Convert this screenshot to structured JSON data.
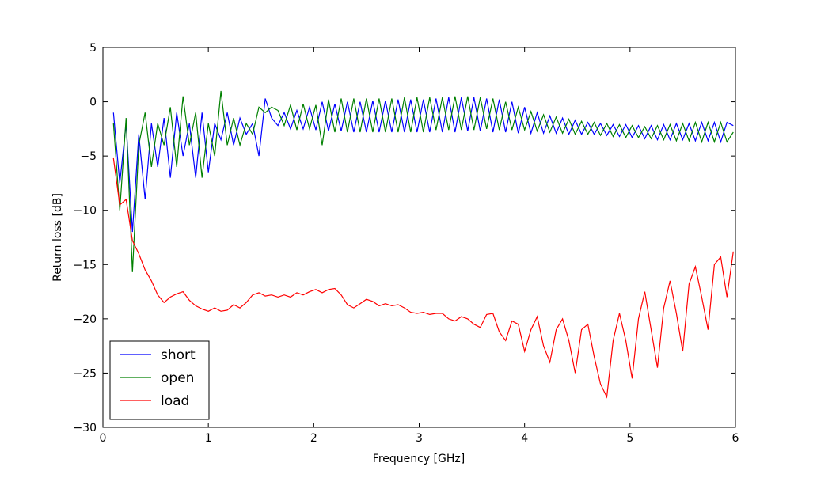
{
  "chart_data": {
    "type": "line",
    "xlabel": "Frequency [GHz]",
    "ylabel": "Return loss [dB]",
    "xlim": [
      0,
      6
    ],
    "ylim": [
      -30,
      5
    ],
    "xticks": [
      0,
      1,
      2,
      3,
      4,
      5,
      6
    ],
    "yticks": [
      {
        "value": -30,
        "label": "−30"
      },
      {
        "value": -25,
        "label": "−25"
      },
      {
        "value": -20,
        "label": "−20"
      },
      {
        "value": -15,
        "label": "−15"
      },
      {
        "value": -10,
        "label": "−10"
      },
      {
        "value": -5,
        "label": "−5"
      },
      0,
      5
    ],
    "legend": "lower left",
    "x": [
      0.1,
      0.16,
      0.22,
      0.28,
      0.34,
      0.4,
      0.46,
      0.52,
      0.58,
      0.64,
      0.7,
      0.76,
      0.82,
      0.88,
      0.94,
      1.0,
      1.06,
      1.12,
      1.18,
      1.24,
      1.3,
      1.36,
      1.42,
      1.48,
      1.54,
      1.6,
      1.66,
      1.72,
      1.78,
      1.84,
      1.9,
      1.96,
      2.02,
      2.08,
      2.14,
      2.2,
      2.26,
      2.32,
      2.38,
      2.44,
      2.5,
      2.56,
      2.62,
      2.68,
      2.74,
      2.8,
      2.86,
      2.92,
      2.98,
      3.04,
      3.1,
      3.16,
      3.22,
      3.28,
      3.34,
      3.4,
      3.46,
      3.52,
      3.58,
      3.64,
      3.7,
      3.76,
      3.82,
      3.88,
      3.94,
      4.0,
      4.06,
      4.12,
      4.18,
      4.24,
      4.3,
      4.36,
      4.42,
      4.48,
      4.54,
      4.6,
      4.66,
      4.72,
      4.78,
      4.84,
      4.9,
      4.96,
      5.02,
      5.08,
      5.14,
      5.2,
      5.26,
      5.32,
      5.38,
      5.44,
      5.5,
      5.56,
      5.62,
      5.68,
      5.74,
      5.8,
      5.86,
      5.92,
      5.98
    ],
    "series": [
      {
        "name": "short",
        "color": "#0000ff",
        "values": [
          -1,
          -7.5,
          -2,
          -12,
          -3,
          -9,
          -2,
          -6,
          -1.5,
          -7,
          -1,
          -5,
          -2,
          -7,
          -1,
          -6.5,
          -2,
          -3.5,
          -1,
          -4,
          -1.5,
          -3,
          -2,
          -5,
          0.3,
          -1.5,
          -2.2,
          -1,
          -2.5,
          -0.8,
          -2.5,
          -0.5,
          -2.6,
          0,
          -2.7,
          -0.2,
          -2.7,
          0,
          -2.8,
          0,
          -2.8,
          0.1,
          -2.8,
          0.1,
          -2.8,
          0.2,
          -2.8,
          0.2,
          -2.8,
          0.2,
          -2.8,
          0.3,
          -2.8,
          0.4,
          -2.8,
          0.4,
          -2.7,
          0.4,
          -2.7,
          0.3,
          -2.8,
          0.2,
          -2.8,
          0,
          -2.9,
          -0.5,
          -2.9,
          -1,
          -2.9,
          -1.3,
          -2.9,
          -1.5,
          -3,
          -1.7,
          -3,
          -1.9,
          -3,
          -2,
          -3.1,
          -2.1,
          -3.2,
          -2.1,
          -3.3,
          -2.2,
          -3.4,
          -2.2,
          -3.5,
          -2.1,
          -3.5,
          -2,
          -3.5,
          -2,
          -3.6,
          -1.9,
          -3.6,
          -1.9,
          -3.7,
          -1.9,
          -2.2
        ]
      },
      {
        "name": "open",
        "color": "#008000",
        "values": [
          -2,
          -10,
          -1.5,
          -15.7,
          -4,
          -1,
          -6,
          -2,
          -4,
          -0.5,
          -6,
          0.5,
          -4,
          -1,
          -7,
          -2,
          -5,
          1,
          -4,
          -1.5,
          -4,
          -2,
          -3,
          -0.5,
          -1,
          -0.5,
          -0.8,
          -2.2,
          -0.3,
          -2.6,
          -0.2,
          -2.5,
          -0.3,
          -4,
          0.2,
          -2.8,
          0.3,
          -2.8,
          0.3,
          -2.8,
          0.3,
          -2.8,
          0.3,
          -2.8,
          0.3,
          -2.8,
          0.4,
          -2.8,
          0.4,
          -2.8,
          0.4,
          -2.6,
          0.4,
          -2.6,
          0.5,
          -2.6,
          0.5,
          -2.6,
          0.4,
          -2.5,
          0.3,
          -2.6,
          0,
          -2.6,
          -0.5,
          -2.6,
          -0.9,
          -2.7,
          -1.2,
          -2.8,
          -1.4,
          -2.9,
          -1.6,
          -3,
          -1.8,
          -3,
          -1.9,
          -3.1,
          -2,
          -3.2,
          -2.1,
          -3.3,
          -2.2,
          -3.3,
          -2.3,
          -3.4,
          -2.2,
          -3.5,
          -2.1,
          -3.6,
          -2,
          -3.6,
          -1.9,
          -3.7,
          -1.9,
          -3.7,
          -1.9,
          -3.7,
          -2.8
        ]
      },
      {
        "name": "load",
        "color": "#ff0000",
        "values": [
          -5.2,
          -9.5,
          -9,
          -12.8,
          -14,
          -15.5,
          -16.5,
          -17.8,
          -18.5,
          -18,
          -17.7,
          -17.5,
          -18.3,
          -18.8,
          -19.1,
          -19.3,
          -19,
          -19.3,
          -19.2,
          -18.7,
          -19,
          -18.5,
          -17.8,
          -17.6,
          -17.9,
          -17.8,
          -18,
          -17.8,
          -18,
          -17.6,
          -17.8,
          -17.5,
          -17.3,
          -17.6,
          -17.3,
          -17.2,
          -17.8,
          -18.7,
          -19,
          -18.6,
          -18.2,
          -18.4,
          -18.8,
          -18.6,
          -18.8,
          -18.7,
          -19,
          -19.4,
          -19.5,
          -19.4,
          -19.6,
          -19.5,
          -19.5,
          -20,
          -20.2,
          -19.8,
          -20,
          -20.5,
          -20.8,
          -19.6,
          -19.5,
          -21.2,
          -22,
          -20.2,
          -20.5,
          -23,
          -21,
          -19.8,
          -22.5,
          -24,
          -21,
          -20,
          -22,
          -25,
          -21,
          -20.5,
          -23.5,
          -26,
          -27.2,
          -22,
          -19.5,
          -22,
          -25.5,
          -20,
          -17.5,
          -21,
          -24.5,
          -19,
          -16.5,
          -19.5,
          -23,
          -16.8,
          -15.2,
          -18,
          -21,
          -15,
          -14.3,
          -18,
          -13.8
        ]
      }
    ]
  }
}
